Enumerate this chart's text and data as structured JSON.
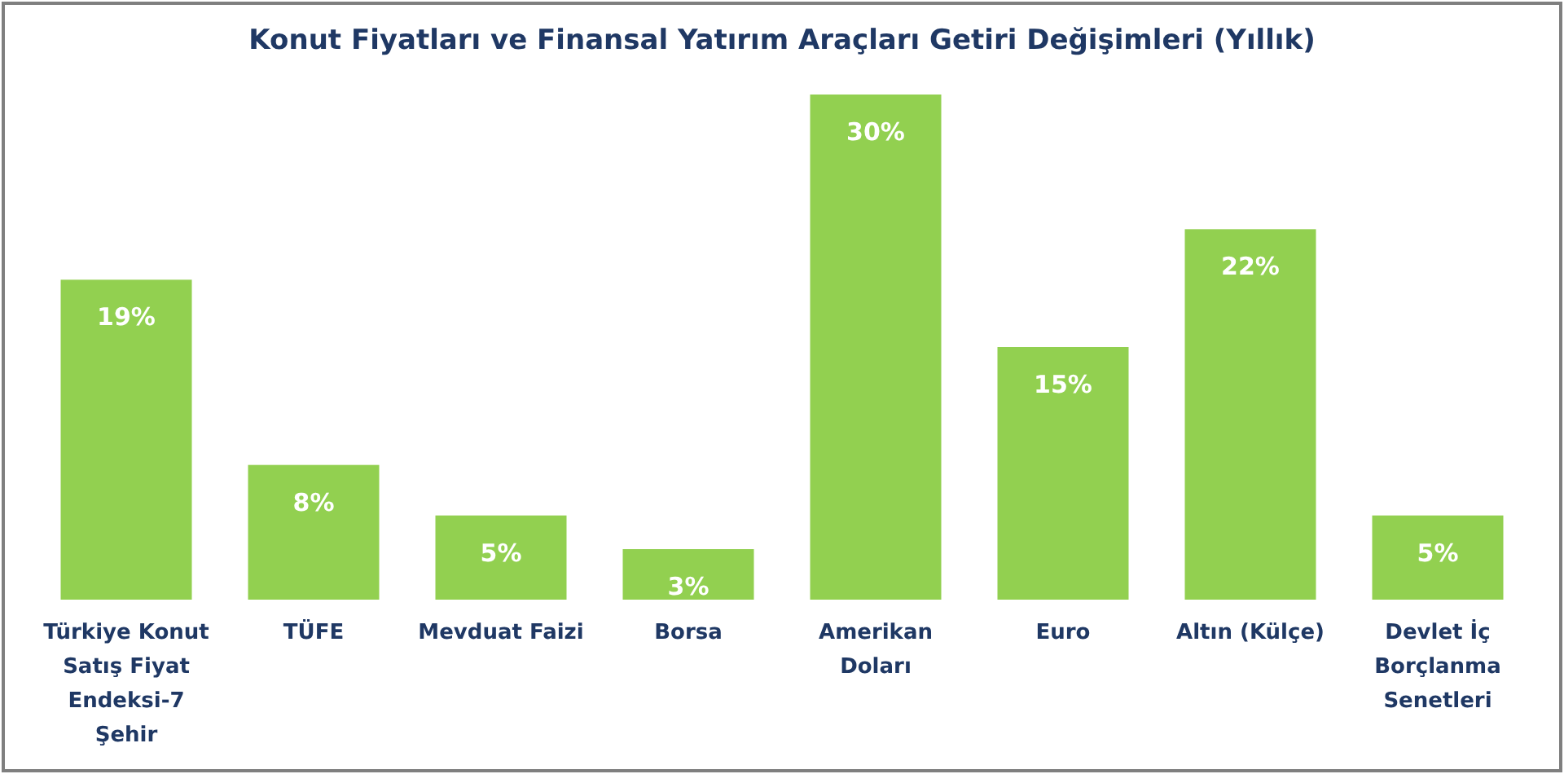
{
  "chart_data": {
    "type": "bar",
    "title": "Konut Fiyatları ve Finansal Yatırım Araçları Getiri Değişimleri (Yıllık)",
    "categories": [
      "Türkiye Konut Satış Fiyat Endeksi-7 Şehir",
      "TÜFE",
      "Mevduat Faizi",
      "Borsa",
      "Amerikan Doları",
      "Euro",
      "Altın (Külçe)",
      "Devlet İç Borçlanma Senetleri"
    ],
    "values": [
      19,
      8,
      5,
      3,
      30,
      15,
      22,
      5
    ],
    "value_labels": [
      "19%",
      "8%",
      "5%",
      "3%",
      "30%",
      "15%",
      "22%",
      "5%"
    ],
    "color": "#92d050"
  }
}
